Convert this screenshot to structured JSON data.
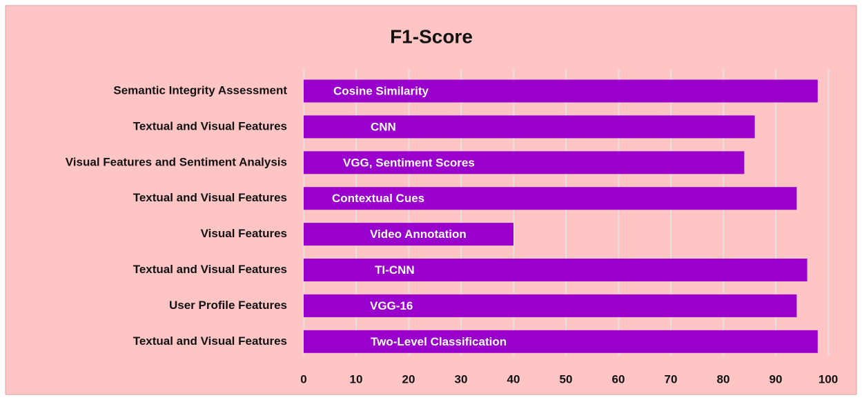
{
  "chart_data": {
    "type": "bar",
    "orientation": "horizontal",
    "title": "F1-Score",
    "categories": [
      "Semantic Integrity Assessment",
      "Textual and Visual Features",
      "Visual Features and Sentiment Analysis",
      "Textual and Visual Features",
      "Visual Features",
      "Textual and Visual Features",
      "User Profile Features",
      "Textual and Visual Features"
    ],
    "bar_labels": [
      "Cosine Similarity",
      "CNN",
      "VGG, Sentiment Scores",
      "Contextual Cues",
      "Video Annotation",
      "TI-CNN",
      "VGG-16",
      "Two-Level Classification"
    ],
    "values": [
      98,
      86,
      84,
      94,
      40,
      96,
      94,
      98
    ],
    "color": "#9900cc",
    "xlim": [
      0,
      100
    ],
    "xticks": [
      0,
      10,
      20,
      30,
      40,
      50,
      60,
      70,
      80,
      90,
      100
    ],
    "grid": true
  }
}
